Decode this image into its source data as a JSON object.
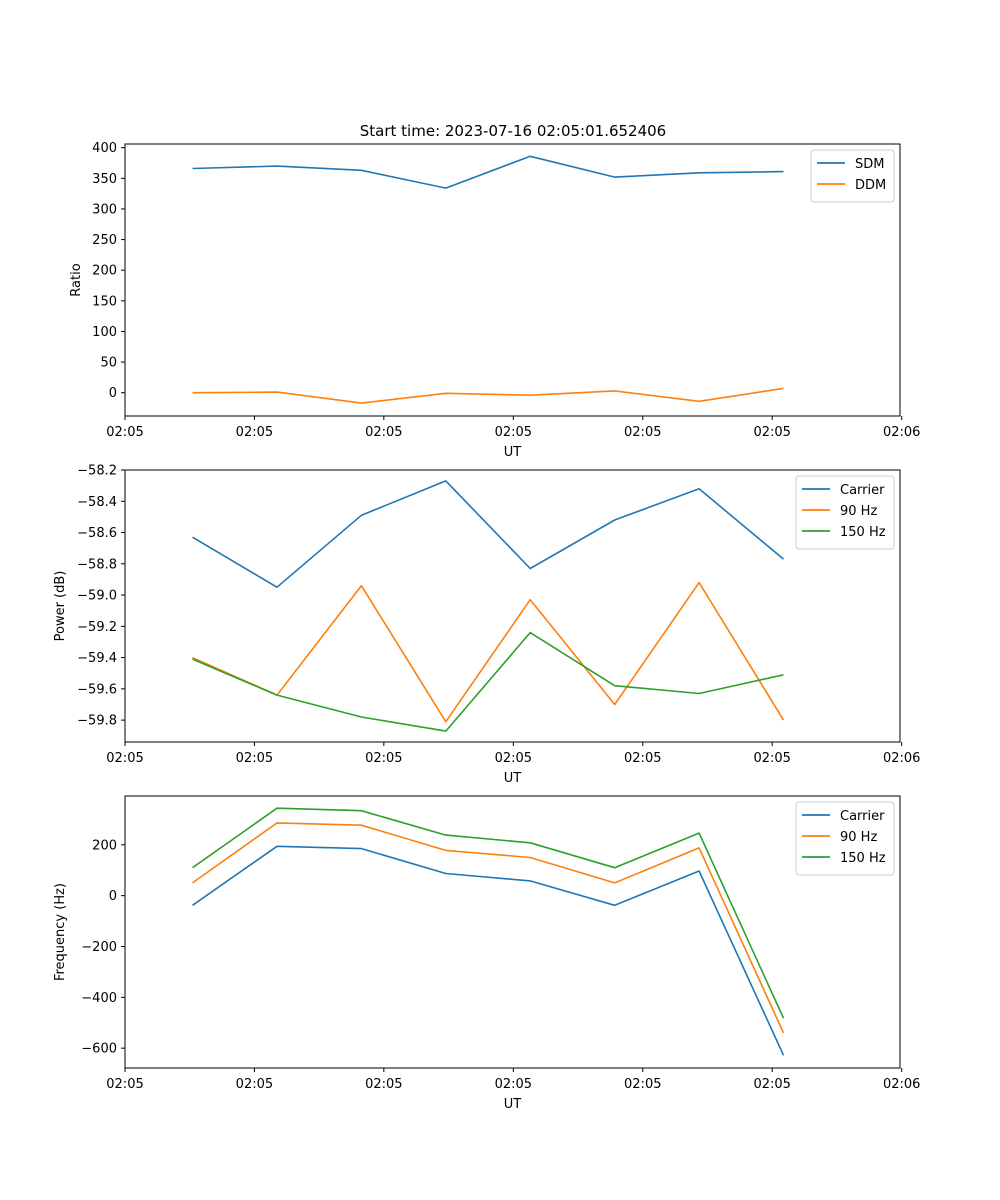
{
  "figure_title": "Start time: 2023-07-16 02:05:01.652406",
  "colors": {
    "blue": "#1f77b4",
    "orange": "#ff7f0e",
    "green": "#2ca02c"
  },
  "chart_data": [
    {
      "type": "line",
      "title": "",
      "xlabel": "UT",
      "ylabel": "Ratio",
      "x": [
        1,
        2,
        3,
        4,
        5,
        6,
        7,
        8
      ],
      "xlim": [
        0.2,
        9.38
      ],
      "xticks": [
        {
          "pos": 0.2,
          "label": "02:05"
        },
        {
          "pos": 1.733,
          "label": "02:05"
        },
        {
          "pos": 3.266,
          "label": "02:05"
        },
        {
          "pos": 4.8,
          "label": "02:05"
        },
        {
          "pos": 6.333,
          "label": "02:05"
        },
        {
          "pos": 7.866,
          "label": "02:05"
        },
        {
          "pos": 9.4,
          "label": "02:06"
        }
      ],
      "ylim": [
        -38,
        406
      ],
      "yticks": [
        {
          "pos": 0,
          "label": "0"
        },
        {
          "pos": 50,
          "label": "50"
        },
        {
          "pos": 100,
          "label": "100"
        },
        {
          "pos": 150,
          "label": "150"
        },
        {
          "pos": 200,
          "label": "200"
        },
        {
          "pos": 250,
          "label": "250"
        },
        {
          "pos": 300,
          "label": "300"
        },
        {
          "pos": 350,
          "label": "350"
        },
        {
          "pos": 400,
          "label": "400"
        }
      ],
      "legend": "top-right",
      "series": [
        {
          "name": "SDM",
          "color": "#1f77b4",
          "values": [
            366,
            370,
            363,
            334,
            386,
            352,
            359,
            361
          ]
        },
        {
          "name": "DDM",
          "color": "#ff7f0e",
          "values": [
            0,
            1,
            -17,
            -1,
            -4,
            3,
            -14,
            7
          ]
        }
      ]
    },
    {
      "type": "line",
      "title": "",
      "xlabel": "UT",
      "ylabel": "Power (dB)",
      "x": [
        1,
        2,
        3,
        4,
        5,
        6,
        7,
        8
      ],
      "xlim": [
        0.2,
        9.38
      ],
      "xticks": [
        {
          "pos": 0.2,
          "label": "02:05"
        },
        {
          "pos": 1.733,
          "label": "02:05"
        },
        {
          "pos": 3.266,
          "label": "02:05"
        },
        {
          "pos": 4.8,
          "label": "02:05"
        },
        {
          "pos": 6.333,
          "label": "02:05"
        },
        {
          "pos": 7.866,
          "label": "02:05"
        },
        {
          "pos": 9.4,
          "label": "02:06"
        }
      ],
      "ylim": [
        -59.94,
        -58.2
      ],
      "yticks": [
        {
          "pos": -59.8,
          "label": "−59.8"
        },
        {
          "pos": -59.6,
          "label": "−59.6"
        },
        {
          "pos": -59.4,
          "label": "−59.4"
        },
        {
          "pos": -59.2,
          "label": "−59.2"
        },
        {
          "pos": -59.0,
          "label": "−59.0"
        },
        {
          "pos": -58.8,
          "label": "−58.8"
        },
        {
          "pos": -58.6,
          "label": "−58.6"
        },
        {
          "pos": -58.4,
          "label": "−58.4"
        },
        {
          "pos": -58.2,
          "label": "−58.2"
        }
      ],
      "legend": "top-right",
      "series": [
        {
          "name": "Carrier",
          "color": "#1f77b4",
          "values": [
            -58.63,
            -58.95,
            -58.49,
            -58.27,
            -58.83,
            -58.52,
            -58.32,
            -58.77
          ]
        },
        {
          "name": "90 Hz",
          "color": "#ff7f0e",
          "values": [
            -59.4,
            -59.64,
            -58.94,
            -59.81,
            -59.03,
            -59.7,
            -58.92,
            -59.8
          ]
        },
        {
          "name": "150 Hz",
          "color": "#2ca02c",
          "values": [
            -59.41,
            -59.64,
            -59.78,
            -59.87,
            -59.24,
            -59.58,
            -59.63,
            -59.51
          ]
        }
      ]
    },
    {
      "type": "line",
      "title": "",
      "xlabel": "UT",
      "ylabel": "Frequency (Hz)",
      "x": [
        1,
        2,
        3,
        4,
        5,
        6,
        7,
        8
      ],
      "xlim": [
        0.2,
        9.38
      ],
      "xticks": [
        {
          "pos": 0.2,
          "label": "02:05"
        },
        {
          "pos": 1.733,
          "label": "02:05"
        },
        {
          "pos": 3.266,
          "label": "02:05"
        },
        {
          "pos": 4.8,
          "label": "02:05"
        },
        {
          "pos": 6.333,
          "label": "02:05"
        },
        {
          "pos": 7.866,
          "label": "02:05"
        },
        {
          "pos": 9.4,
          "label": "02:06"
        }
      ],
      "ylim": [
        -678,
        392
      ],
      "yticks": [
        {
          "pos": -600,
          "label": "−600"
        },
        {
          "pos": -400,
          "label": "−400"
        },
        {
          "pos": -200,
          "label": "−200"
        },
        {
          "pos": 0,
          "label": "0"
        },
        {
          "pos": 200,
          "label": "200"
        }
      ],
      "legend": "top-right",
      "series": [
        {
          "name": "Carrier",
          "color": "#1f77b4",
          "values": [
            -38,
            194,
            185,
            87,
            58,
            -38,
            97,
            -628
          ]
        },
        {
          "name": "90 Hz",
          "color": "#ff7f0e",
          "values": [
            50,
            286,
            277,
            178,
            150,
            50,
            188,
            -540
          ]
        },
        {
          "name": "150 Hz",
          "color": "#2ca02c",
          "values": [
            110,
            344,
            334,
            238,
            208,
            110,
            246,
            -482
          ]
        }
      ]
    }
  ]
}
